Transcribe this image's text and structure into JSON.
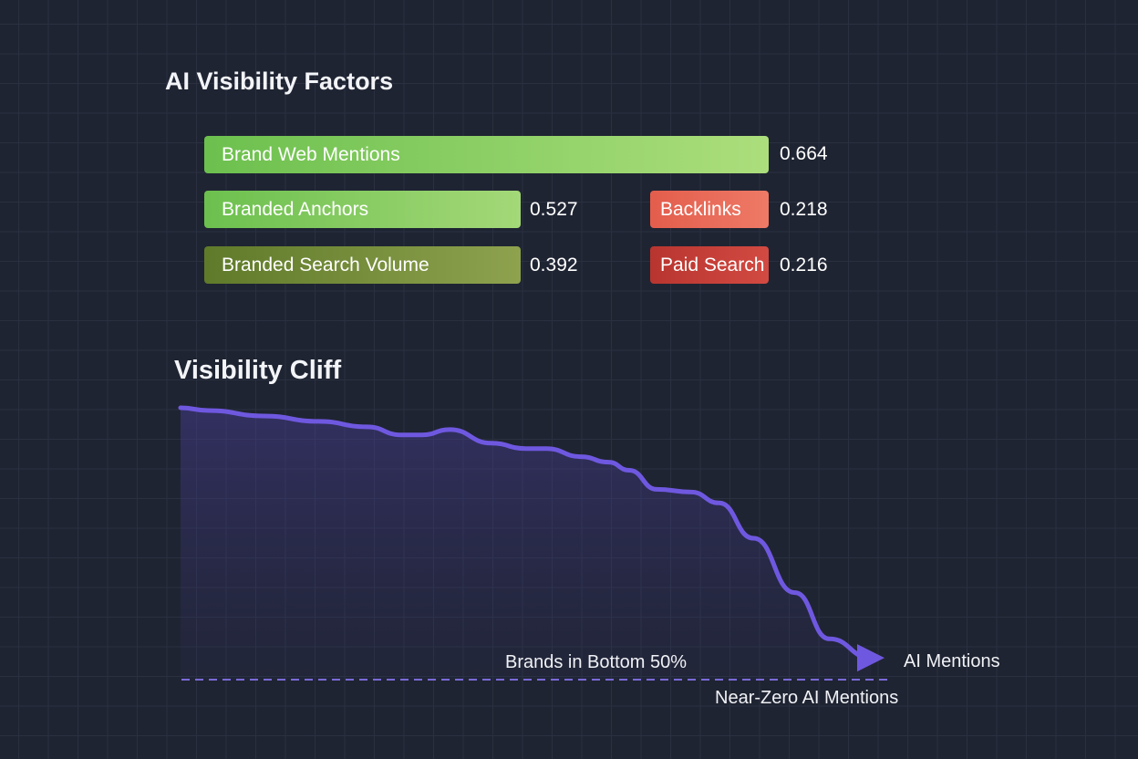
{
  "chart_data": [
    {
      "type": "bar",
      "title": "AI Visibility Factors",
      "categories": [
        "Brand Web Mentions",
        "Branded Anchors",
        "Branded Search Volume",
        "Backlinks",
        "Paid Search"
      ],
      "values": [
        0.664,
        0.527,
        0.392,
        0.218,
        0.216
      ],
      "value_labels": [
        "0.664",
        "0.527",
        "0.392",
        "0.218",
        "0.216"
      ],
      "colors": [
        "#8fd066",
        "#88cc64",
        "#748e3c",
        "#e86a58",
        "#c4403a"
      ]
    },
    {
      "type": "area",
      "title": "Visibility Cliff",
      "x": [
        0,
        4,
        12,
        20,
        27,
        32,
        35,
        39,
        45,
        50,
        53,
        58,
        62,
        65,
        69,
        74,
        78,
        83,
        89,
        94,
        100
      ],
      "y": [
        1.0,
        0.99,
        0.97,
        0.95,
        0.93,
        0.9,
        0.9,
        0.92,
        0.87,
        0.85,
        0.85,
        0.82,
        0.8,
        0.77,
        0.7,
        0.69,
        0.65,
        0.52,
        0.32,
        0.15,
        0.08
      ],
      "line_color": "#6f58e0",
      "annotations": {
        "bottom_label": "Brands in Bottom 50%",
        "end_label": "AI Mentions",
        "baseline_label": "Near-Zero AI Mentions"
      }
    }
  ]
}
